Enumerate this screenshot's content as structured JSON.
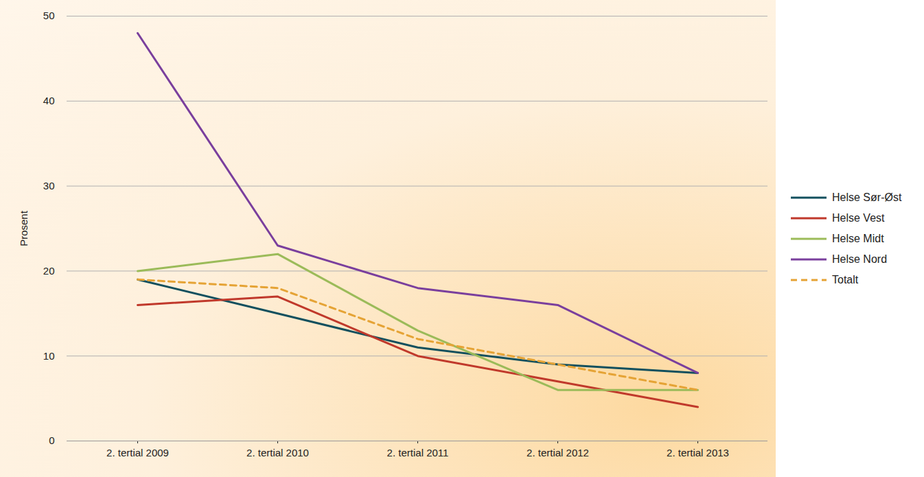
{
  "chart_data": {
    "type": "line",
    "categories": [
      "2. tertial 2009",
      "2. tertial 2010",
      "2. tertial 2011",
      "2. tertial 2012",
      "2. tertial 2013"
    ],
    "y_label": "Prosent",
    "ylim": [
      0,
      50
    ],
    "yticks": [
      0,
      10,
      20,
      30,
      40,
      50
    ],
    "grid": true,
    "legend": "right",
    "series": [
      {
        "name": "Helse Sør-Øst",
        "color": "#12505e",
        "values": [
          19,
          15,
          11,
          9,
          8
        ]
      },
      {
        "name": "Helse Vest",
        "color": "#c0392b",
        "values": [
          16,
          17,
          10,
          7,
          4
        ]
      },
      {
        "name": "Helse Midt",
        "color": "#9bbb59",
        "values": [
          20,
          22,
          13,
          6,
          6
        ]
      },
      {
        "name": "Helse Nord",
        "color": "#7a3f9d",
        "values": [
          48,
          23,
          18,
          16,
          8
        ]
      },
      {
        "name": "Totalt",
        "color": "#e5a335",
        "values": [
          19,
          18,
          12,
          9,
          6
        ],
        "line_style": "dashed"
      }
    ]
  }
}
